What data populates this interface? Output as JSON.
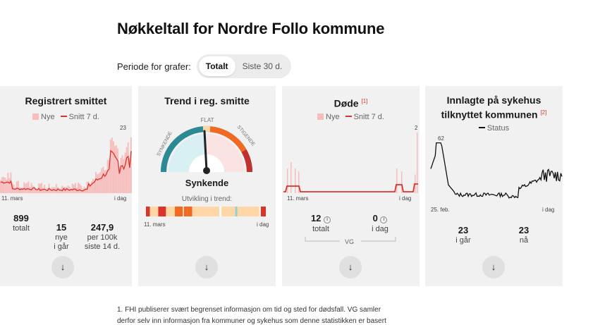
{
  "title": "Nøkkeltall for Nordre Follo kommune",
  "period": {
    "label": "Periode for grafer:",
    "options": [
      "Totalt",
      "Siste 30 d."
    ],
    "selected": "Totalt"
  },
  "cards": {
    "registered": {
      "title": "Registrert smittet",
      "legend_new": "Nye",
      "legend_avg": "Snitt 7 d.",
      "peak_label": "23",
      "axis_start": "11. mars",
      "axis_end": "i dag",
      "stats": [
        {
          "value": "899",
          "label": "totalt"
        },
        {
          "value": "15",
          "label": "nye\ni går"
        },
        {
          "value": "247,9",
          "label": "per 100k\nsiste 14 d."
        }
      ],
      "expand_icon": "arrow-down-icon"
    },
    "trend": {
      "title": "Trend i reg. smitte",
      "gauge_left": "SYNKENDE",
      "gauge_top": "FLAT",
      "gauge_right": "STIGENDE",
      "status": "Synkende",
      "development_label": "Utvikling i trend:",
      "axis_start": "11. mars",
      "axis_end": "i dag",
      "expand_icon": "arrow-down-icon"
    },
    "deaths": {
      "title": "Døde",
      "footnote_ref": "[1]",
      "legend_new": "Nye",
      "legend_avg": "Snitt 7 d.",
      "peak_label": "2",
      "axis_start": "11. mars",
      "axis_end": "i dag",
      "stats": [
        {
          "value": "12",
          "label": "totalt"
        },
        {
          "value": "0",
          "label": "i dag"
        }
      ],
      "source": "VG",
      "expand_icon": "arrow-down-icon"
    },
    "hospital": {
      "title_line1": "Innlagte på sykehus",
      "title_line2": "tilknyttet kommunen",
      "footnote_ref": "[2]",
      "legend_status": "Status",
      "peak_label": "62",
      "axis_start": "25. feb.",
      "axis_end": "i dag",
      "stats": [
        {
          "value": "23",
          "label": "i går"
        },
        {
          "value": "23",
          "label": "nå"
        }
      ],
      "expand_icon": "arrow-down-icon"
    }
  },
  "footnote": {
    "line1": "1. FHI publiserer svært begrenset informasjon om tid og sted for dødsfall. VG samler",
    "line2": "derfor selv inn informasjon fra kommuner og sykehus som denne statistikken er basert"
  },
  "colors": {
    "accent_red": "#d9342b",
    "bar_pink": "#f7bcbc",
    "gauge_teal": "#2b8a94",
    "gauge_orange": "#f26a21",
    "card_bg": "#f1f1f1"
  }
}
